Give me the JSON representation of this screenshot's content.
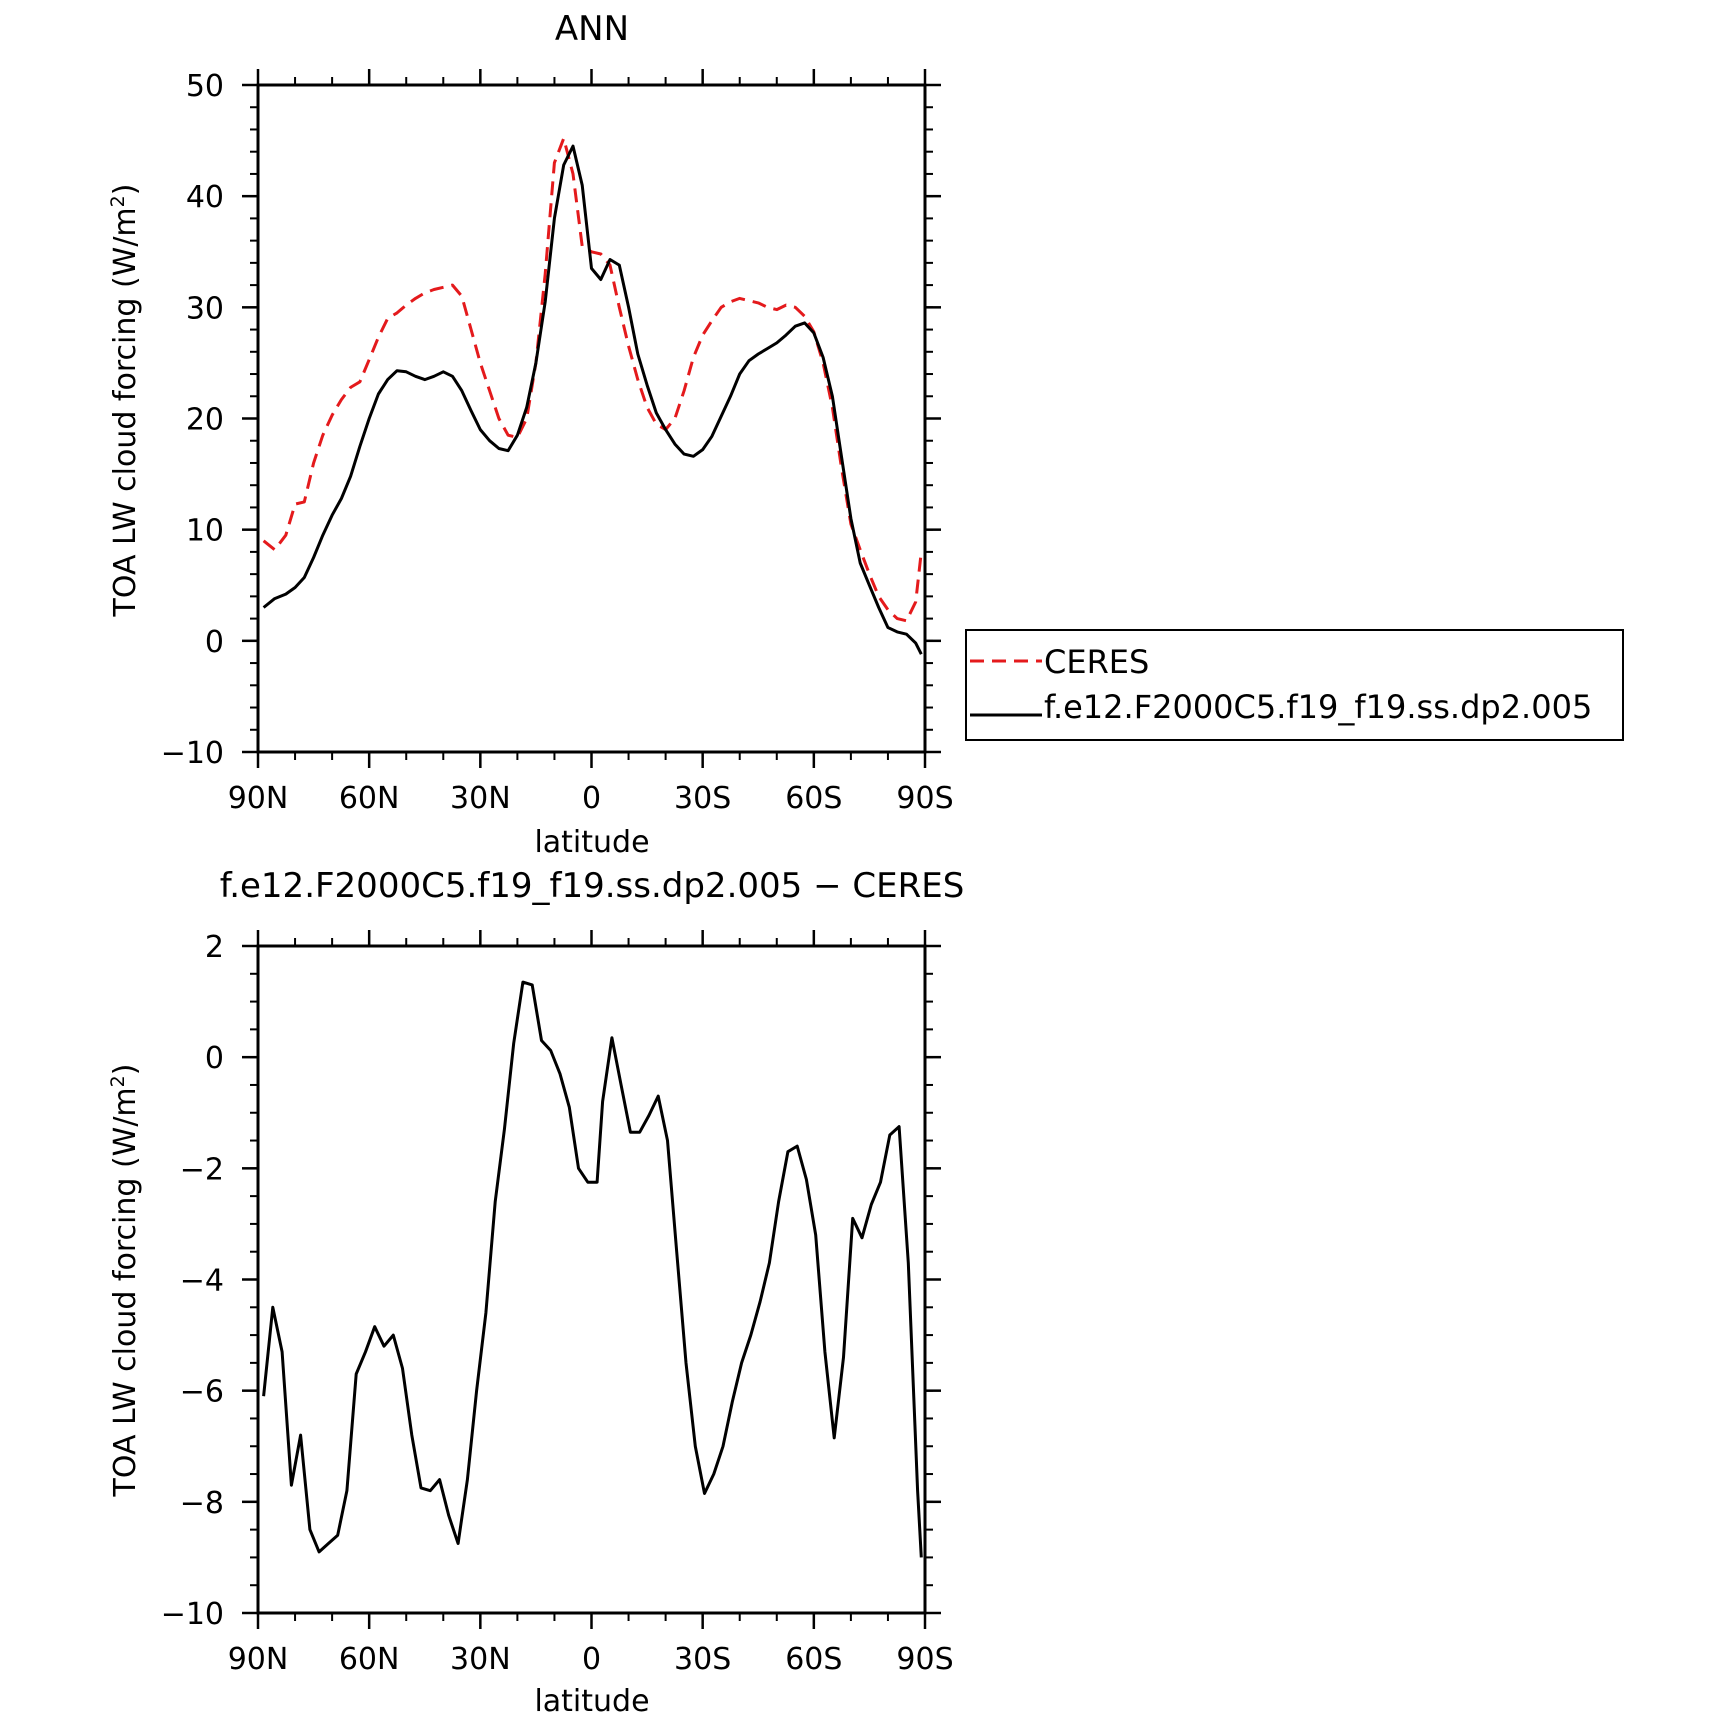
{
  "chart_data": [
    {
      "type": "line",
      "title": "ANN",
      "xlabel": "latitude",
      "ylabel": "TOA LW cloud forcing (W/m²)",
      "ylabel_parts": [
        "TOA LW cloud forcing (W/m",
        "2",
        ")"
      ],
      "xlim": [
        90,
        -90
      ],
      "ylim": [
        -10,
        50
      ],
      "xticks": [
        {
          "value": 90,
          "label": "90N"
        },
        {
          "value": 60,
          "label": "60N"
        },
        {
          "value": 30,
          "label": "30N"
        },
        {
          "value": 0,
          "label": "0"
        },
        {
          "value": -30,
          "label": "30S"
        },
        {
          "value": -60,
          "label": "60S"
        },
        {
          "value": -90,
          "label": "90S"
        }
      ],
      "yticks": [
        {
          "value": -10,
          "label": "−10"
        },
        {
          "value": 0,
          "label": "0"
        },
        {
          "value": 10,
          "label": "10"
        },
        {
          "value": 20,
          "label": "20"
        },
        {
          "value": 30,
          "label": "30"
        },
        {
          "value": 40,
          "label": "40"
        },
        {
          "value": 50,
          "label": "50"
        }
      ],
      "grid": false,
      "legend_position": "right",
      "series": [
        {
          "name": "CERES",
          "color": "#e41a1c",
          "dash": "dashed",
          "x": [
            88.5,
            85.5,
            82.5,
            80,
            77.5,
            75,
            72.5,
            70,
            67.5,
            65,
            62.5,
            60,
            57.5,
            55,
            52.5,
            50,
            47.5,
            45,
            42.5,
            40,
            37.5,
            35,
            32.5,
            30,
            27.5,
            25,
            22.5,
            20,
            17.5,
            15,
            12.5,
            10,
            7.5,
            5,
            2.5,
            0,
            -2.5,
            -5,
            -7.5,
            -10,
            -12.5,
            -15,
            -17.5,
            -20,
            -22.5,
            -25,
            -27.5,
            -30,
            -32.5,
            -35,
            -37.5,
            -40,
            -42.5,
            -45,
            -47.5,
            -50,
            -52.5,
            -55,
            -57.5,
            -60,
            -62.5,
            -65,
            -67.5,
            -70,
            -72.5,
            -75,
            -77.5,
            -80,
            -82.5,
            -85,
            -87.5,
            -89
          ],
          "y": [
            9,
            8.2,
            9.5,
            12.3,
            12.5,
            16,
            18.5,
            20.3,
            21.7,
            22.8,
            23.3,
            25.3,
            27.3,
            29,
            29.5,
            30.2,
            30.8,
            31.3,
            31.6,
            31.8,
            32,
            31,
            28,
            25,
            22.5,
            20,
            18.5,
            18.3,
            20,
            25,
            33,
            43,
            45.2,
            42,
            35.5,
            35,
            34.8,
            33.8,
            30,
            26.5,
            23.5,
            21,
            19.5,
            19,
            20,
            22.5,
            25.5,
            27.5,
            28.8,
            30,
            30.5,
            30.8,
            30.6,
            30.4,
            30,
            29.8,
            30.2,
            30,
            29.2,
            27.8,
            25,
            21,
            15.5,
            10.5,
            8.2,
            6,
            4,
            2.8,
            2,
            1.8,
            3.5,
            8
          ]
        },
        {
          "name": "f.e12.F2000C5.f19_f19.ss.dp2.005",
          "color": "#000000",
          "dash": "solid",
          "x": [
            88.5,
            85.5,
            82.5,
            80,
            77.5,
            75,
            72.5,
            70,
            67.5,
            65,
            62.5,
            60,
            57.5,
            55,
            52.5,
            50,
            47.5,
            45,
            42.5,
            40,
            37.5,
            35,
            32.5,
            30,
            27.5,
            25,
            22.5,
            20,
            17.5,
            15,
            12.5,
            10,
            7.5,
            5,
            2.5,
            0,
            -2.5,
            -5,
            -7.5,
            -10,
            -12.5,
            -15,
            -17.5,
            -20,
            -22.5,
            -25,
            -27.5,
            -30,
            -32.5,
            -35,
            -37.5,
            -40,
            -42.5,
            -45,
            -47.5,
            -50,
            -52.5,
            -55,
            -57.5,
            -60,
            -62.5,
            -65,
            -67.5,
            -70,
            -72.5,
            -75,
            -77.5,
            -80,
            -82.5,
            -85,
            -87.5,
            -89
          ],
          "y": [
            3,
            3.8,
            4.2,
            4.8,
            5.7,
            7.5,
            9.5,
            11.3,
            12.8,
            14.8,
            17.5,
            20,
            22.2,
            23.5,
            24.3,
            24.2,
            23.8,
            23.5,
            23.8,
            24.2,
            23.8,
            22.5,
            20.7,
            19,
            18,
            17.3,
            17.1,
            18.5,
            21,
            25,
            30.5,
            38,
            42.8,
            44.5,
            41,
            33.5,
            32.5,
            34.3,
            33.8,
            30,
            25.8,
            23,
            20.5,
            19,
            17.7,
            16.8,
            16.6,
            17.2,
            18.4,
            20.2,
            22,
            24,
            25.2,
            25.8,
            26.3,
            26.8,
            27.5,
            28.3,
            28.6,
            27.7,
            25.5,
            22,
            16.5,
            11,
            7,
            5,
            3,
            1.2,
            0.8,
            0.6,
            -0.2,
            -1.2
          ]
        }
      ]
    },
    {
      "type": "line",
      "title": "f.e12.F2000C5.f19_f19.ss.dp2.005 − CERES",
      "xlabel": "latitude",
      "ylabel": "TOA LW cloud forcing (W/m²)",
      "ylabel_parts": [
        "TOA LW cloud forcing (W/m",
        "2",
        ")"
      ],
      "xlim": [
        90,
        -90
      ],
      "ylim": [
        -10,
        2
      ],
      "xticks": [
        {
          "value": 90,
          "label": "90N"
        },
        {
          "value": 60,
          "label": "60N"
        },
        {
          "value": 30,
          "label": "30N"
        },
        {
          "value": 0,
          "label": "0"
        },
        {
          "value": -30,
          "label": "30S"
        },
        {
          "value": -60,
          "label": "60S"
        },
        {
          "value": -90,
          "label": "90S"
        }
      ],
      "yticks": [
        {
          "value": -10,
          "label": "−10"
        },
        {
          "value": -8,
          "label": "−8"
        },
        {
          "value": -6,
          "label": "−6"
        },
        {
          "value": -4,
          "label": "−4"
        },
        {
          "value": -2,
          "label": "−2"
        },
        {
          "value": 0,
          "label": "0"
        },
        {
          "value": 2,
          "label": "2"
        }
      ],
      "grid": false,
      "series": [
        {
          "color": "#000000",
          "dash": "solid",
          "x": [
            88.5,
            86,
            83.5,
            81,
            78.5,
            76,
            73.5,
            71,
            68.5,
            66,
            63.5,
            61,
            58.5,
            56,
            53.5,
            51,
            48.5,
            46,
            43.5,
            41,
            38.5,
            36,
            33.5,
            31,
            28.5,
            26,
            23.5,
            21,
            18.5,
            16,
            13.5,
            11,
            8.5,
            6,
            3.5,
            1,
            -1.5,
            -3,
            -5.5,
            -8,
            -10.5,
            -13,
            -15.5,
            -18,
            -20.5,
            -23,
            -25.5,
            -28,
            -30.5,
            -33,
            -35.5,
            -38,
            -40.5,
            -43,
            -45.5,
            -48,
            -50.5,
            -53,
            -55.5,
            -58,
            -60.5,
            -63,
            -65.5,
            -68,
            -70.5,
            -73,
            -75.5,
            -78,
            -80.5,
            -83,
            -85.5,
            -88,
            -89
          ],
          "y": [
            -6.1,
            -4.5,
            -5.3,
            -7.7,
            -6.8,
            -8.5,
            -8.9,
            -8.75,
            -8.6,
            -7.8,
            -5.7,
            -5.3,
            -4.85,
            -5.2,
            -5,
            -5.6,
            -6.8,
            -7.75,
            -7.8,
            -7.6,
            -8.25,
            -8.75,
            -7.6,
            -6,
            -4.6,
            -2.6,
            -1.3,
            0.25,
            1.35,
            1.3,
            0.3,
            0.12,
            -0.3,
            -0.9,
            -2,
            -2.25,
            -2.25,
            -0.8,
            0.35,
            -0.5,
            -1.35,
            -1.35,
            -1.05,
            -0.7,
            -1.5,
            -3.5,
            -5.5,
            -7,
            -7.85,
            -7.5,
            -7,
            -6.2,
            -5.5,
            -5,
            -4.4,
            -3.7,
            -2.6,
            -1.7,
            -1.6,
            -2.2,
            -3.2,
            -5.3,
            -6.85,
            -5.4,
            -2.9,
            -3.25,
            -2.65,
            -2.25,
            -1.4,
            -1.25,
            -3.7,
            -7.8,
            -9
          ]
        }
      ]
    }
  ]
}
